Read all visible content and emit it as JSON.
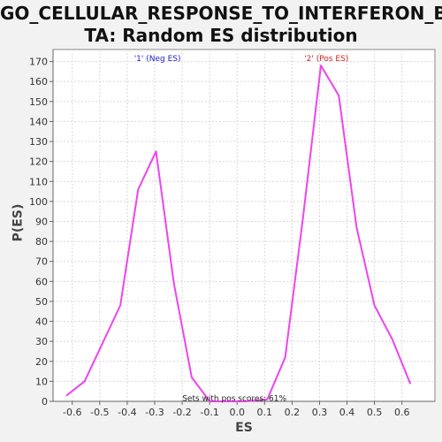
{
  "chart_data": {
    "type": "line",
    "title_lines": [
      "GO_CELLULAR_RESPONSE_TO_INTERFERON_BE",
      "TA: Random ES distribution"
    ],
    "xlabel": "ES",
    "ylabel": "P(ES)",
    "xlim": [
      -0.67,
      0.72
    ],
    "ylim": [
      0,
      176
    ],
    "x_ticks": [
      -0.6,
      -0.5,
      -0.4,
      -0.3,
      -0.2,
      -0.1,
      0.0,
      0.1,
      0.2,
      0.3,
      0.4,
      0.5,
      0.6
    ],
    "x_tick_labels": [
      "-0.6",
      "-0.5",
      "-0.4",
      "-0.3",
      "-0.2",
      "-0.1",
      "0.0",
      "0.1",
      "0.2",
      "0.3",
      "0.4",
      "0.5",
      "0.6"
    ],
    "y_ticks": [
      0,
      10,
      20,
      30,
      40,
      50,
      60,
      70,
      80,
      90,
      100,
      110,
      120,
      130,
      140,
      150,
      160,
      170
    ],
    "grid": true,
    "series": [
      {
        "color": "#ee44ee",
        "x": [
          -0.62,
          -0.555,
          -0.49,
          -0.425,
          -0.36,
          -0.295,
          -0.23,
          -0.165,
          -0.1,
          -0.035,
          0.03,
          0.11,
          0.175,
          0.24,
          0.305,
          0.37,
          0.435,
          0.5,
          0.565,
          0.63
        ],
        "y": [
          3,
          10,
          29,
          48,
          106,
          125,
          59,
          12,
          0,
          0,
          0,
          1,
          22,
          92,
          168,
          153,
          87,
          48,
          31,
          9
        ]
      }
    ],
    "annotations": [
      {
        "text": "'1' (Neg ES)",
        "x": -0.29,
        "y": 172,
        "color": "#2222cc"
      },
      {
        "text": "'2' (Pos ES)",
        "x": 0.325,
        "y": 172,
        "color": "#cc2222"
      },
      {
        "text": "Sets with pos scores: 61%",
        "x": -0.01,
        "y": 2,
        "color": "#222222"
      }
    ]
  }
}
